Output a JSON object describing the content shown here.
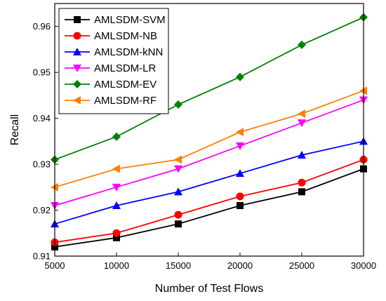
{
  "chart_data": {
    "type": "line",
    "title": "",
    "xlabel": "Number of Test Flows",
    "ylabel": "Recall",
    "x": [
      5000,
      10000,
      15000,
      20000,
      25000,
      30000
    ],
    "xlim": [
      5000,
      30000
    ],
    "ylim": [
      0.91,
      0.965
    ],
    "xticks": [
      "5000",
      "10000",
      "15000",
      "20000",
      "25000",
      "30000"
    ],
    "yticks": [
      "0.91",
      "0.92",
      "0.93",
      "0.94",
      "0.95",
      "0.96"
    ],
    "grid": false,
    "legend_position": "top-left",
    "series": [
      {
        "name": "AMLSDM-SVM",
        "color": "#000000",
        "marker": "square",
        "values": [
          0.912,
          0.914,
          0.917,
          0.921,
          0.924,
          0.929
        ]
      },
      {
        "name": "AMLSDM-NB",
        "color": "#ff0000",
        "marker": "circle",
        "values": [
          0.913,
          0.915,
          0.919,
          0.923,
          0.926,
          0.931
        ]
      },
      {
        "name": "AMLSDM-kNN",
        "color": "#0000ff",
        "marker": "triangle-up",
        "values": [
          0.917,
          0.921,
          0.924,
          0.928,
          0.932,
          0.935
        ]
      },
      {
        "name": "AMLSDM-LR",
        "color": "#ff00ff",
        "marker": "triangle-down",
        "values": [
          0.921,
          0.925,
          0.929,
          0.934,
          0.939,
          0.944
        ]
      },
      {
        "name": "AMLSDM-EV",
        "color": "#008000",
        "marker": "diamond",
        "values": [
          0.931,
          0.936,
          0.943,
          0.949,
          0.956,
          0.962
        ]
      },
      {
        "name": "AMLSDM-RF",
        "color": "#ff8000",
        "marker": "triangle-left",
        "values": [
          0.925,
          0.929,
          0.931,
          0.937,
          0.941,
          0.946
        ]
      }
    ]
  }
}
